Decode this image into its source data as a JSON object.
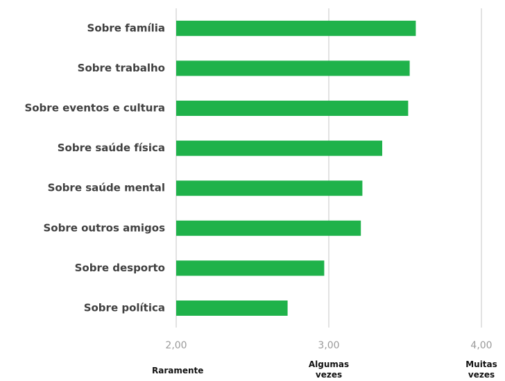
{
  "chart_data": {
    "type": "bar",
    "orientation": "horizontal",
    "categories": [
      "Sobre família",
      "Sobre trabalho",
      "Sobre eventos e cultura",
      "Sobre saúde física",
      "Sobre saúde mental",
      "Sobre outros amigos",
      "Sobre desporto",
      "Sobre política"
    ],
    "values": [
      3.57,
      3.53,
      3.52,
      3.35,
      3.22,
      3.21,
      2.97,
      2.73
    ],
    "color": "#1fb24a",
    "xlim": [
      2,
      4
    ],
    "xticks": [
      {
        "value": 2,
        "label": "2,00"
      },
      {
        "value": 3,
        "label": "3,00"
      },
      {
        "value": 4,
        "label": "4,00"
      }
    ],
    "x_axis_descriptors": [
      "Raramente",
      "Algumas vezes",
      "Muitas vezes"
    ],
    "grid": true
  }
}
